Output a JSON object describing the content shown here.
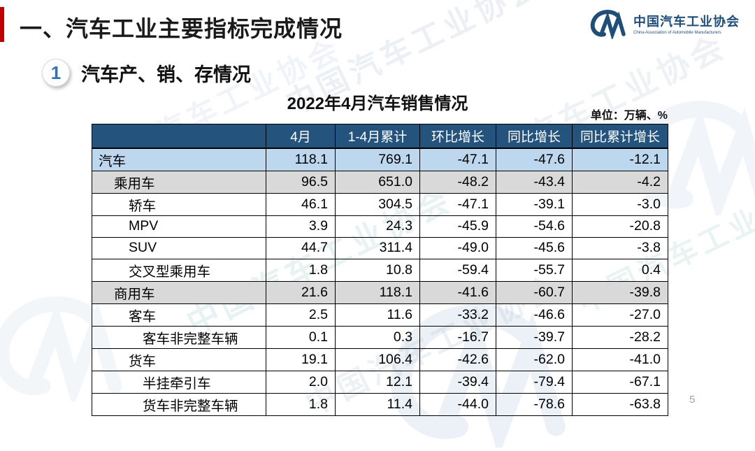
{
  "slide": {
    "title": "一、汽车工业主要指标完成情况",
    "page_number": "5",
    "accent_color": "#C00000"
  },
  "logo": {
    "mark": "CM",
    "name_cn": "中国汽车工业协会",
    "name_en": "China Association of Automobile Manufacturers",
    "color": "#1F4E79"
  },
  "section": {
    "number": "1",
    "title": "汽车产、销、存情况"
  },
  "table": {
    "title": "2022年4月汽车销售情况",
    "unit_label": "单位：万辆、%",
    "columns": [
      "",
      "4月",
      "1-4月累计",
      "环比增长",
      "同比增长",
      "同比累计增长"
    ],
    "header_bg": "#24547E",
    "row_highlight_blue": "#BDD7EE",
    "row_highlight_gray": "#D9D9D9",
    "rows": [
      {
        "label": "汽车",
        "level": 0,
        "bg": "blue",
        "values": [
          "118.1",
          "769.1",
          "-47.1",
          "-47.6",
          "-12.1"
        ]
      },
      {
        "label": "乘用车",
        "level": 1,
        "bg": "gray",
        "values": [
          "96.5",
          "651.0",
          "-48.2",
          "-43.4",
          "-4.2"
        ]
      },
      {
        "label": "轿车",
        "level": 2,
        "bg": "",
        "values": [
          "46.1",
          "304.5",
          "-47.1",
          "-39.1",
          "-3.0"
        ]
      },
      {
        "label": "MPV",
        "level": 2,
        "bg": "",
        "values": [
          "3.9",
          "24.3",
          "-45.9",
          "-54.6",
          "-20.8"
        ]
      },
      {
        "label": "SUV",
        "level": 2,
        "bg": "",
        "values": [
          "44.7",
          "311.4",
          "-49.0",
          "-45.6",
          "-3.8"
        ]
      },
      {
        "label": "交叉型乘用车",
        "level": 2,
        "bg": "",
        "values": [
          "1.8",
          "10.8",
          "-59.4",
          "-55.7",
          "0.4"
        ]
      },
      {
        "label": "商用车",
        "level": 1,
        "bg": "gray",
        "values": [
          "21.6",
          "118.1",
          "-41.6",
          "-60.7",
          "-39.8"
        ]
      },
      {
        "label": "客车",
        "level": 2,
        "bg": "",
        "values": [
          "2.5",
          "11.6",
          "-33.2",
          "-46.6",
          "-27.0"
        ]
      },
      {
        "label": "客车非完整车辆",
        "level": 3,
        "bg": "",
        "values": [
          "0.1",
          "0.3",
          "-16.7",
          "-39.7",
          "-28.2"
        ]
      },
      {
        "label": "货车",
        "level": 2,
        "bg": "",
        "values": [
          "19.1",
          "106.4",
          "-42.6",
          "-62.0",
          "-41.0"
        ]
      },
      {
        "label": "半挂牵引车",
        "level": 3,
        "bg": "",
        "values": [
          "2.0",
          "12.1",
          "-39.4",
          "-79.4",
          "-67.1"
        ]
      },
      {
        "label": "货车非完整车辆",
        "level": 3,
        "bg": "",
        "values": [
          "1.8",
          "11.4",
          "-44.0",
          "-78.6",
          "-63.8"
        ]
      }
    ]
  },
  "watermark": {
    "text": "中国汽车工业协会",
    "mark": "CM"
  }
}
